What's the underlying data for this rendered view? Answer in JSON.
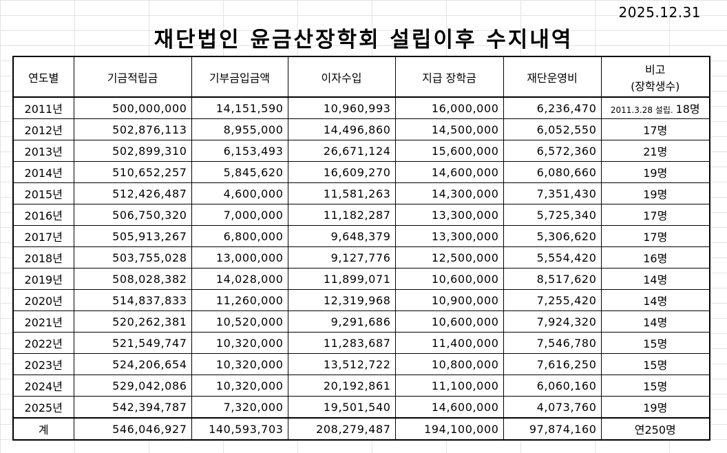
{
  "date": "2025.12.31",
  "title": "재단법인 윤금산장학회 설립이후 수지내역",
  "headers": {
    "year": "연도별",
    "fund": "기금적립금",
    "donation": "기부금입금액",
    "interest": "이자수입",
    "scholarship": "지급 장학금",
    "operating": "재단운영비",
    "note_line1": "비고",
    "note_line2": "(장학생수)"
  },
  "rows": [
    {
      "year": "2011년",
      "fund": "500,000,000",
      "donation": "14,151,590",
      "interest": "10,960,993",
      "scholarship": "16,000,000",
      "operating": "6,236,470",
      "note_prefix": "2011.3.28 설립.",
      "note": "18명"
    },
    {
      "year": "2012년",
      "fund": "502,876,113",
      "donation": "8,955,000",
      "interest": "14,496,860",
      "scholarship": "14,500,000",
      "operating": "6,052,550",
      "note": "17명"
    },
    {
      "year": "2013년",
      "fund": "502,899,310",
      "donation": "6,153,493",
      "interest": "26,671,124",
      "scholarship": "15,600,000",
      "operating": "6,572,360",
      "note": "21명"
    },
    {
      "year": "2014년",
      "fund": "510,652,257",
      "donation": "5,845,620",
      "interest": "16,609,270",
      "scholarship": "14,600,000",
      "operating": "6,080,660",
      "note": "19명"
    },
    {
      "year": "2015년",
      "fund": "512,426,487",
      "donation": "4,600,000",
      "interest": "11,581,263",
      "scholarship": "14,300,000",
      "operating": "7,351,430",
      "note": "19명"
    },
    {
      "year": "2016년",
      "fund": "506,750,320",
      "donation": "7,000,000",
      "interest": "11,182,287",
      "scholarship": "13,300,000",
      "operating": "5,725,340",
      "note": "17명"
    },
    {
      "year": "2017년",
      "fund": "505,913,267",
      "donation": "6,800,000",
      "interest": "9,648,379",
      "scholarship": "13,300,000",
      "operating": "5,306,620",
      "note": "17명"
    },
    {
      "year": "2018년",
      "fund": "503,755,028",
      "donation": "13,000,000",
      "interest": "9,127,776",
      "scholarship": "12,500,000",
      "operating": "5,554,420",
      "note": "16명"
    },
    {
      "year": "2019년",
      "fund": "508,028,382",
      "donation": "14,028,000",
      "interest": "11,899,071",
      "scholarship": "10,600,000",
      "operating": "8,517,620",
      "note": "14명"
    },
    {
      "year": "2020년",
      "fund": "514,837,833",
      "donation": "11,260,000",
      "interest": "12,319,968",
      "scholarship": "10,900,000",
      "operating": "7,255,420",
      "note": "14명"
    },
    {
      "year": "2021년",
      "fund": "520,262,381",
      "donation": "10,520,000",
      "interest": "9,291,686",
      "scholarship": "10,600,000",
      "operating": "7,924,320",
      "note": "14명"
    },
    {
      "year": "2022년",
      "fund": "521,549,747",
      "donation": "10,320,000",
      "interest": "11,283,687",
      "scholarship": "11,400,000",
      "operating": "7,546,780",
      "note": "15명"
    },
    {
      "year": "2023년",
      "fund": "524,206,654",
      "donation": "10,320,000",
      "interest": "13,512,722",
      "scholarship": "10,800,000",
      "operating": "7,616,250",
      "note": "15명"
    },
    {
      "year": "2024년",
      "fund": "529,042,086",
      "donation": "10,320,000",
      "interest": "20,192,861",
      "scholarship": "11,100,000",
      "operating": "6,060,160",
      "note": "15명"
    },
    {
      "year": "2025년",
      "fund": "542,394,787",
      "donation": "7,320,000",
      "interest": "19,501,540",
      "scholarship": "14,600,000",
      "operating": "4,073,760",
      "note": "19명"
    }
  ],
  "total": {
    "label": "계",
    "fund": "546,046,927",
    "donation": "140,593,703",
    "interest": "208,279,487",
    "scholarship": "194,100,000",
    "operating": "97,874,160",
    "note": "연250명"
  }
}
